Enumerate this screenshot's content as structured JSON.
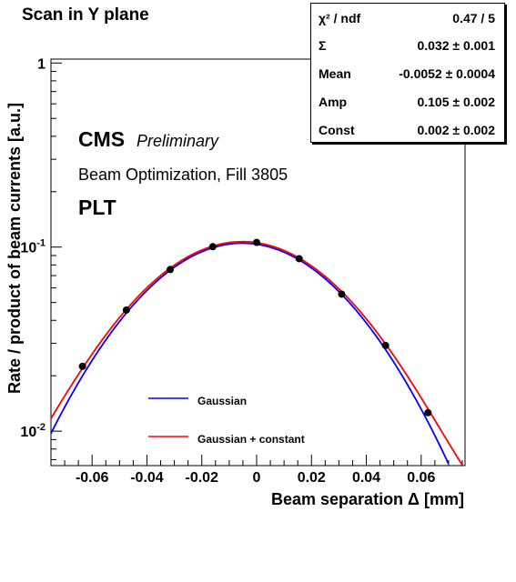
{
  "page_title": "Scan in Y plane",
  "stats_box": {
    "rows": [
      {
        "name": "χ² / ndf",
        "value": "0.47 / 5"
      },
      {
        "name": "Σ",
        "value": "0.032 ± 0.001"
      },
      {
        "name": "Mean",
        "value": "-0.0052 ± 0.0004"
      },
      {
        "name": "Amp",
        "value": "0.105 ± 0.002"
      },
      {
        "name": "Const",
        "value": "0.002 ± 0.002"
      }
    ]
  },
  "chart_data": {
    "type": "scatter",
    "title": "Scan in Y plane",
    "xlabel": "Beam separation Δ [mm]",
    "ylabel": "Rate / product of beam currents [a.u.]",
    "xlim": [
      -0.075,
      0.076
    ],
    "ylim": [
      0.0065,
      1.05
    ],
    "yscale": "log",
    "x_ticks": [
      -0.06,
      -0.04,
      -0.02,
      0,
      0.02,
      0.04,
      0.06
    ],
    "x_tick_labels": [
      "-0.06",
      "-0.04",
      "-0.02",
      "0",
      "0.02",
      "0.04",
      "0.06"
    ],
    "y_major_ticks": [
      0.01,
      0.1,
      1
    ],
    "y_tick_labels": [
      "10",
      "10",
      "1"
    ],
    "y_tick_exponents": [
      "-2",
      "-1",
      ""
    ],
    "annotations": {
      "experiment": "CMS",
      "status": "Preliminary",
      "description": "Beam Optimization, Fill 3805",
      "detector": "PLT"
    },
    "points": {
      "x": [
        -0.0635,
        -0.0475,
        -0.0315,
        -0.016,
        0.0,
        0.0155,
        0.031,
        0.047,
        0.0625
      ],
      "y": [
        0.0225,
        0.0455,
        0.0755,
        0.1005,
        0.106,
        0.0865,
        0.0555,
        0.0292,
        0.0126
      ],
      "color": "#000000"
    },
    "series": [
      {
        "name": "Gaussian",
        "color": "#0000ff",
        "amp": 0.105,
        "mean": -0.0052,
        "sigma": 0.032,
        "const": 0
      },
      {
        "name": "Gaussian + constant",
        "color": "#ff0000",
        "amp": 0.105,
        "mean": -0.0052,
        "sigma": 0.032,
        "const": 0.002
      }
    ],
    "legend_position": "bottom-center",
    "grid": false
  }
}
